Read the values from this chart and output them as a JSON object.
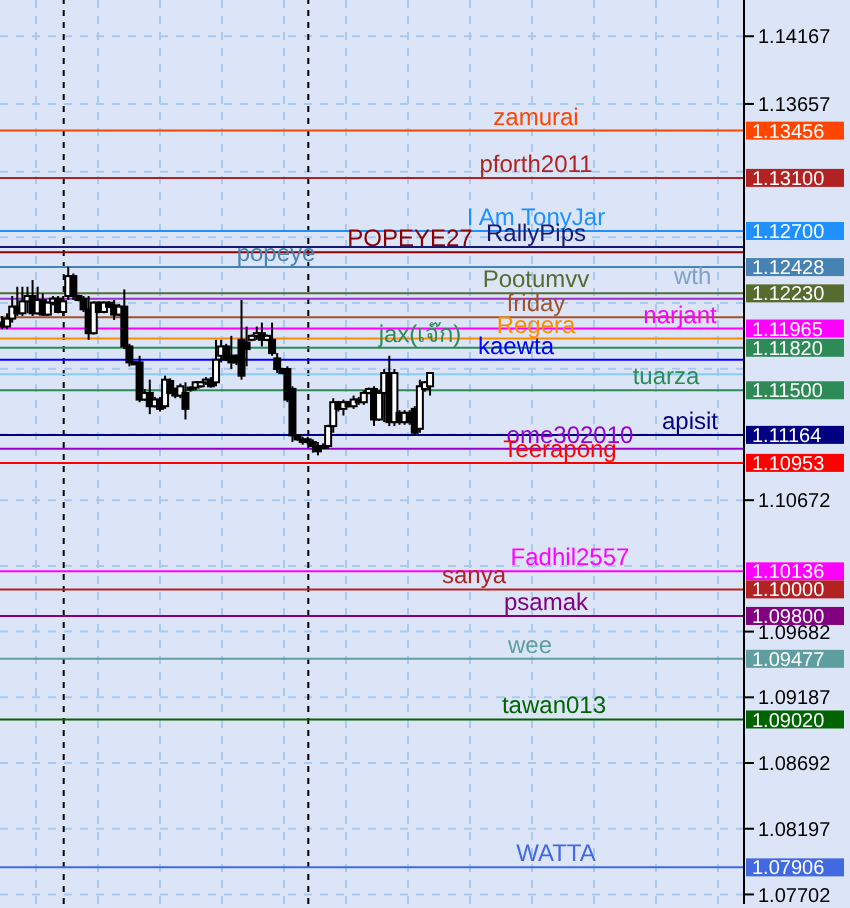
{
  "chart_data": {
    "type": "candlestick",
    "color": "#000000",
    "tick_labels": "y",
    "grid": true,
    "categories": [
      null,
      null,
      null,
      null,
      null,
      null,
      null,
      null,
      null,
      null,
      null,
      null,
      null,
      null,
      null,
      null,
      null,
      null,
      null,
      null,
      null,
      null,
      null,
      null,
      null,
      null,
      null,
      null,
      null,
      null,
      null,
      null,
      null,
      null,
      null,
      null,
      null,
      null,
      null,
      null,
      null,
      null,
      null,
      null,
      null,
      null,
      null,
      null,
      null,
      null,
      null,
      null,
      null,
      null,
      null,
      null,
      null,
      null,
      null,
      null,
      null,
      null,
      null,
      null,
      null,
      null,
      null,
      null,
      null,
      null,
      null,
      null,
      null,
      null,
      null,
      null,
      null,
      null,
      null,
      null,
      null,
      null,
      null,
      null,
      null,
      null,
      null,
      null,
      null,
      null,
      null,
      null,
      null,
      null,
      null,
      null,
      null,
      null,
      null,
      null,
      null,
      null,
      null,
      null,
      null,
      null,
      null,
      null,
      null,
      null,
      null,
      null,
      null,
      null,
      null,
      null,
      null,
      null,
      null,
      null,
      null,
      null,
      null,
      null,
      null,
      null,
      null,
      null,
      null,
      null,
      null,
      null,
      null,
      null,
      null,
      null,
      null,
      null,
      null,
      null,
      null,
      null,
      null,
      null,
      null,
      null
    ],
    "ohlc": [
      [
        1.1201,
        1.1206,
        1.1196,
        1.1198
      ],
      [
        1.1198,
        1.1208,
        1.1196,
        1.1204
      ],
      [
        1.1204,
        1.1221,
        1.1201,
        1.1213
      ],
      [
        1.1213,
        1.1228,
        1.1206,
        1.1208
      ],
      [
        1.1208,
        1.1228,
        1.1206,
        1.1217
      ],
      [
        1.1217,
        1.1228,
        1.1208,
        1.1221
      ],
      [
        1.1221,
        1.1233,
        1.1206,
        1.1208
      ],
      [
        1.1208,
        1.1228,
        1.1207,
        1.1218
      ],
      [
        1.1218,
        1.1223,
        1.1206,
        1.1207
      ],
      [
        1.1207,
        1.1217,
        1.1206,
        1.1216
      ],
      [
        1.1216,
        1.1221,
        1.1214,
        1.1219
      ],
      [
        1.1219,
        1.1221,
        1.1208,
        1.1209
      ],
      [
        1.1209,
        1.1221,
        1.1206,
        1.1217
      ],
      [
        1.1221,
        1.1243,
        1.1218,
        1.1236
      ],
      [
        1.1236,
        1.1238,
        1.1218,
        1.1221
      ],
      [
        1.1221,
        1.1222,
        1.1217,
        1.1218
      ],
      [
        1.1219,
        1.1221,
        1.1209,
        1.1211
      ],
      [
        1.1211,
        1.1221,
        1.1188,
        1.1193
      ],
      [
        1.1193,
        1.1217,
        1.1192,
        1.1216
      ],
      [
        1.1216,
        1.1217,
        1.1208,
        1.1209
      ],
      [
        1.1209,
        1.1217,
        1.1208,
        1.1216
      ],
      [
        1.1216,
        1.1217,
        1.1212,
        1.1213
      ],
      [
        1.1214,
        1.1218,
        1.1203,
        1.1207
      ],
      [
        1.1207,
        1.1215,
        1.1206,
        1.1213
      ],
      [
        1.1213,
        1.1226,
        1.1181,
        1.1183
      ],
      [
        1.1183,
        1.1185,
        1.1168,
        1.1171
      ],
      [
        1.1171,
        1.1172,
        1.1169,
        1.117
      ],
      [
        1.1171,
        1.1176,
        1.1141,
        1.1143
      ],
      [
        1.1143,
        1.1151,
        1.1142,
        1.1148
      ],
      [
        1.1148,
        1.1158,
        1.1132,
        1.1138
      ],
      [
        1.1138,
        1.1145,
        1.1137,
        1.1143
      ],
      [
        1.1143,
        1.1145,
        1.1134,
        1.1136
      ],
      [
        1.1138,
        1.1161,
        1.1136,
        1.1158
      ],
      [
        1.1157,
        1.1159,
        1.1147,
        1.1148
      ],
      [
        1.1151,
        1.1152,
        1.1144,
        1.1146
      ],
      [
        1.1146,
        1.1155,
        1.1144,
        1.1153
      ],
      [
        1.1148,
        1.1156,
        1.1128,
        1.1136
      ],
      [
        1.1151,
        1.1153,
        1.1149,
        1.1152
      ],
      [
        1.1152,
        1.1157,
        1.115,
        1.1156
      ],
      [
        1.1153,
        1.1157,
        1.1152,
        1.1156
      ],
      [
        1.1156,
        1.116,
        1.1154,
        1.1158
      ],
      [
        1.1158,
        1.116,
        1.1152,
        1.1153
      ],
      [
        1.1156,
        1.1188,
        1.1153,
        1.1173
      ],
      [
        1.1176,
        1.1188,
        1.1171,
        1.1183
      ],
      [
        1.1183,
        1.1185,
        1.1172,
        1.1173
      ],
      [
        1.1176,
        1.1191,
        1.1166,
        1.1171
      ],
      [
        1.1176,
        1.1177,
        1.1169,
        1.1171
      ],
      [
        1.1188,
        1.1218,
        1.1158,
        1.1161
      ],
      [
        1.1186,
        1.1198,
        1.1168,
        1.1181
      ],
      [
        1.1188,
        1.1192,
        1.1187,
        1.1191
      ],
      [
        1.1191,
        1.1198,
        1.1188,
        1.1193
      ],
      [
        1.1193,
        1.1201,
        1.1183,
        1.1188
      ],
      [
        1.1188,
        1.1192,
        1.1187,
        1.1191
      ],
      [
        1.1188,
        1.1201,
        1.1176,
        1.1178
      ],
      [
        1.1174,
        1.1178,
        1.1163,
        1.1166
      ],
      [
        1.1166,
        1.1167,
        1.1162,
        1.1163
      ],
      [
        1.1166,
        1.1168,
        1.1141,
        1.1143
      ],
      [
        1.1151,
        1.1153,
        1.1111,
        1.1116
      ],
      [
        1.1116,
        1.1117,
        1.1112,
        1.1113
      ],
      [
        1.1113,
        1.1115,
        1.1109,
        1.1111
      ],
      [
        1.1113,
        1.1115,
        1.1109,
        1.1111
      ],
      [
        1.1111,
        1.1113,
        1.1103,
        1.1108
      ],
      [
        1.1108,
        1.1111,
        1.1101,
        1.1104
      ],
      [
        1.1107,
        1.111,
        1.1106,
        1.1108
      ],
      [
        1.1108,
        1.1124,
        1.1106,
        1.1123
      ],
      [
        1.1123,
        1.1144,
        1.1118,
        1.1141
      ],
      [
        1.1141,
        1.1142,
        1.1134,
        1.1136
      ],
      [
        1.1136,
        1.1143,
        1.1131,
        1.1141
      ],
      [
        1.1141,
        1.1142,
        1.1137,
        1.1138
      ],
      [
        1.1138,
        1.1146,
        1.1136,
        1.1143
      ],
      [
        1.1143,
        1.1145,
        1.1139,
        1.1141
      ],
      [
        1.1141,
        1.115,
        1.1139,
        1.1148
      ],
      [
        1.1148,
        1.1152,
        1.1147,
        1.1151
      ],
      [
        1.1151,
        1.1153,
        1.1123,
        1.1128
      ],
      [
        1.1128,
        1.115,
        1.1127,
        1.1148
      ],
      [
        1.1148,
        1.1166,
        1.1126,
        1.1163
      ],
      [
        1.1163,
        1.1176,
        1.1123,
        1.1126
      ],
      [
        1.1126,
        1.1166,
        1.1123,
        1.1163
      ],
      [
        1.1133,
        1.1135,
        1.1124,
        1.1126
      ],
      [
        1.1126,
        1.1135,
        1.1124,
        1.1133
      ],
      [
        1.1133,
        1.1135,
        1.1124,
        1.1126
      ],
      [
        1.1136,
        1.1138,
        1.1116,
        1.1118
      ],
      [
        1.1121,
        1.1158,
        1.1118,
        1.1153
      ],
      [
        1.1151,
        1.1157,
        1.1149,
        1.1156
      ],
      [
        1.1153,
        1.1163,
        1.1146,
        1.1163
      ],
      null,
      null,
      null,
      null,
      null,
      null,
      null,
      null,
      null,
      null,
      null,
      null,
      null,
      null,
      null,
      null,
      null,
      null,
      null,
      null,
      null,
      null,
      null,
      null,
      null,
      null,
      null,
      null,
      null,
      null,
      null,
      null,
      null,
      null,
      null,
      null,
      null,
      null,
      null,
      null,
      null,
      null,
      null,
      null,
      null,
      null,
      null,
      null,
      null,
      null,
      null,
      null,
      null,
      null,
      null,
      null,
      null,
      null,
      null,
      null,
      null
    ],
    "ylim": [
      1.0763,
      1.1444
    ],
    "yticks": [
      1.14167,
      1.13657,
      1.13456,
      {
        "value": 1.13147,
        "label": null
      },
      {
        "value": 1.131,
        "label": "1.13100"
      },
      {
        "value": 1.127,
        "label": "1.12700"
      },
      {
        "value": 1.12652,
        "label": null
      },
      1.12428,
      {
        "value": 1.1223,
        "label": "1.12230"
      },
      {
        "value": 1.12157,
        "label": null
      },
      1.11965,
      {
        "value": 1.1182,
        "label": "1.11820"
      },
      {
        "value": 1.11662,
        "label": null
      },
      {
        "value": 1.115,
        "label": "1.11500"
      },
      {
        "value": 1.11167,
        "label": null
      },
      1.11164,
      1.10953,
      1.10672,
      {
        "value": 1.10177,
        "label": null
      },
      1.10136,
      {
        "value": 1.1,
        "label": "1.10000"
      },
      {
        "value": 1.098,
        "label": "1.09800"
      },
      1.09682,
      1.09477,
      1.09187,
      {
        "value": 1.0902,
        "label": "1.09020"
      },
      1.08692,
      1.08197,
      1.07906,
      1.07702
    ],
    "ref_lines": [
      {
        "axis": "y",
        "value": 1.13456,
        "label": "zamurai",
        "color": "#ff4500"
      },
      {
        "axis": "y",
        "value": 1.131,
        "label": "pforth2011",
        "color": "#b22222"
      },
      {
        "axis": "y",
        "value": 1.127,
        "label": "I Am TonyJar",
        "color": "#1e90ff"
      },
      {
        "axis": "y",
        "value": 1.1258,
        "label": "RallyPips",
        "color": "#191970"
      },
      {
        "axis": "y",
        "value": 1.1254,
        "label": "POPEYE27",
        "color": "#8b0000"
      },
      {
        "axis": "y",
        "value": 1.12428,
        "label": "popeye",
        "color": "#4682b4"
      },
      {
        "axis": "y",
        "value": 1.1223,
        "label": "Pootumvv",
        "color": "#556b2f"
      },
      {
        "axis": "y",
        "value": 1.1219,
        "label": null,
        "color": "#9932cc"
      },
      {
        "axis": "y",
        "value": 1.1205,
        "label": "friday",
        "color": "#a0522d"
      },
      {
        "axis": "y",
        "value": 1.11965,
        "label": "narjant",
        "color": "#ff00ff"
      },
      {
        "axis": "y",
        "value": 1.1189,
        "label": "Regera",
        "color": "#ff8c00"
      },
      {
        "axis": "y",
        "value": 1.1182,
        "label": "jax(เจ๊ก)",
        "color": "#2e8b57"
      },
      {
        "axis": "y",
        "value": 1.1173,
        "label": "kaewta",
        "color": "#0000ff"
      },
      {
        "axis": "y",
        "value": 1.1162,
        "label": null,
        "color": "#87cefa"
      },
      {
        "axis": "y",
        "value": 1.115,
        "label": "tuarza",
        "color": "#2e8b57"
      },
      {
        "axis": "y",
        "value": 1.11164,
        "label": "apisit",
        "color": "#000080"
      },
      {
        "axis": "y",
        "value": 1.11059,
        "label": "ome302010",
        "color": "#9400d3"
      },
      {
        "axis": "y",
        "value": 1.10953,
        "label": "Teerapong",
        "color": "#ff0000"
      },
      {
        "axis": "y",
        "value": 1.10136,
        "label": "Fadhil2557",
        "color": "#ff00ff"
      },
      {
        "axis": "y",
        "value": 1.1,
        "label": "sanya",
        "color": "#b22222"
      },
      {
        "axis": "y",
        "value": 1.098,
        "label": "psamak",
        "color": "#800080"
      },
      {
        "axis": "y",
        "value": 1.09477,
        "label": "wee",
        "color": "#5f9ea0"
      },
      {
        "axis": "y",
        "value": 1.0902,
        "label": "tawan013",
        "color": "#006400"
      },
      {
        "axis": "y",
        "value": 1.07906,
        "label": "WATTA",
        "color": "#4169e1"
      }
    ],
    "annotations": [
      "wth"
    ]
  }
}
